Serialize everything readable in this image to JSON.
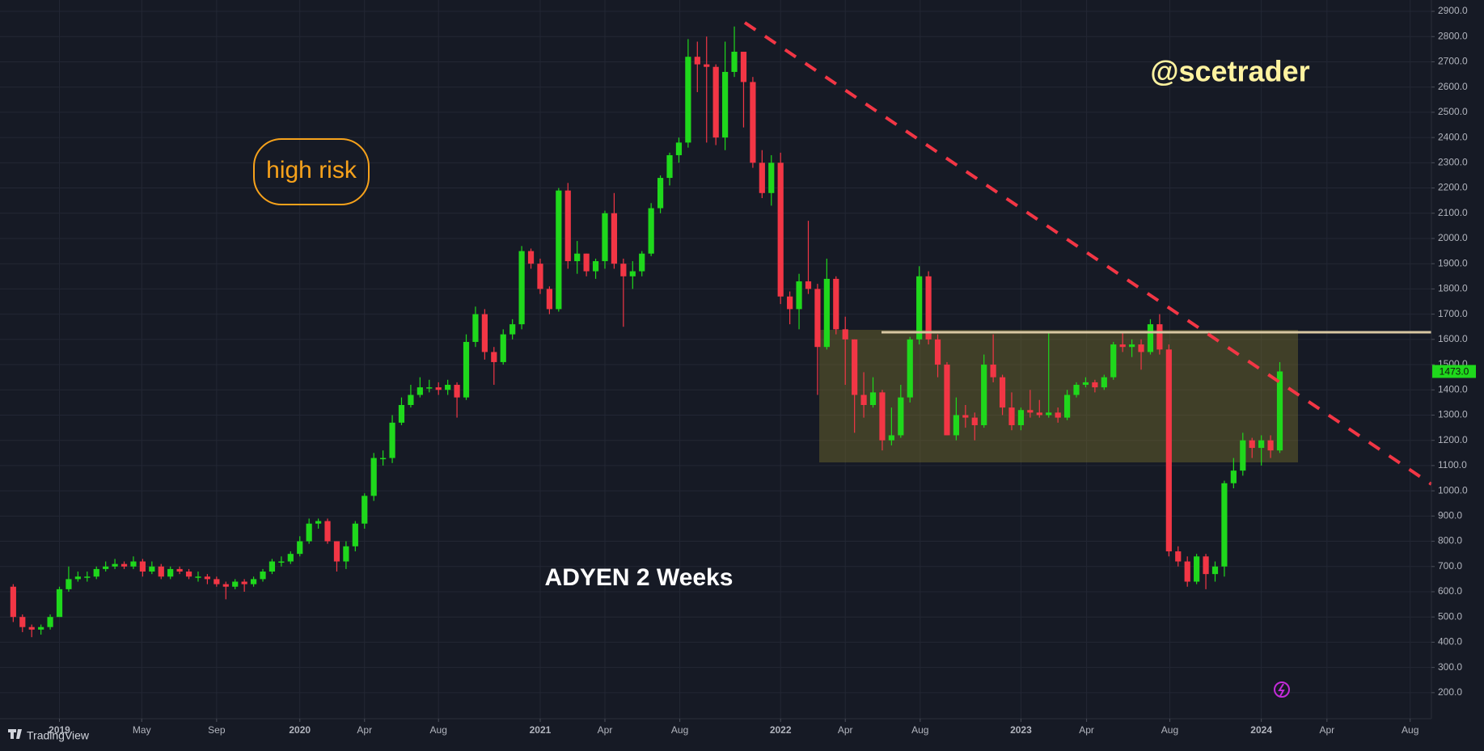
{
  "chart_data": {
    "type": "candlestick",
    "title": "ADYEN 2 Weeks",
    "annotations": {
      "risk": "high risk",
      "author": "@scetrader",
      "brand": "TradingView"
    },
    "last_price_label": "1473.0",
    "up_color": "#1fd81c",
    "down_color": "#f23645",
    "grid": true,
    "xlim": [
      -1.43,
      153.4
    ],
    "ylim": [
      97,
      2945
    ],
    "xticks": [
      {
        "value": 5,
        "label": "2019"
      },
      {
        "value": 13.9,
        "label": "May"
      },
      {
        "value": 22,
        "label": "Sep"
      },
      {
        "value": 31,
        "label": "2020"
      },
      {
        "value": 38,
        "label": "Apr"
      },
      {
        "value": 46,
        "label": "Aug"
      },
      {
        "value": 57,
        "label": "2021"
      },
      {
        "value": 64,
        "label": "Apr"
      },
      {
        "value": 72.1,
        "label": "Aug"
      },
      {
        "value": 83,
        "label": "2022"
      },
      {
        "value": 90,
        "label": "Apr"
      },
      {
        "value": 98.1,
        "label": "Aug"
      },
      {
        "value": 109,
        "label": "2023"
      },
      {
        "value": 116.1,
        "label": "Apr"
      },
      {
        "value": 125.1,
        "label": "Aug"
      },
      {
        "value": 135,
        "label": "2024"
      },
      {
        "value": 142.1,
        "label": "Apr"
      },
      {
        "value": 151.1,
        "label": "Aug"
      }
    ],
    "yticks": [
      {
        "value": 200,
        "label": "200.0"
      },
      {
        "value": 300,
        "label": "300.0"
      },
      {
        "value": 400,
        "label": "400.0"
      },
      {
        "value": 500,
        "label": "500.0"
      },
      {
        "value": 600,
        "label": "600.0"
      },
      {
        "value": 700,
        "label": "700.0"
      },
      {
        "value": 800,
        "label": "800.0"
      },
      {
        "value": 900,
        "label": "900.0"
      },
      {
        "value": 1000,
        "label": "1000.0"
      },
      {
        "value": 1100,
        "label": "1100.0"
      },
      {
        "value": 1200,
        "label": "1200.0"
      },
      {
        "value": 1300,
        "label": "1300.0"
      },
      {
        "value": 1400,
        "label": "1400.0"
      },
      {
        "value": 1500,
        "label": "1500.0"
      },
      {
        "value": 1600,
        "label": "1600.0"
      },
      {
        "value": 1700,
        "label": "1700.0"
      },
      {
        "value": 1800,
        "label": "1800.0"
      },
      {
        "value": 1900,
        "label": "1900.0"
      },
      {
        "value": 2000,
        "label": "2000.0"
      },
      {
        "value": 2100,
        "label": "2100.0"
      },
      {
        "value": 2200,
        "label": "2200.0"
      },
      {
        "value": 2300,
        "label": "2300.0"
      },
      {
        "value": 2400,
        "label": "2400.0"
      },
      {
        "value": 2500,
        "label": "2500.0"
      },
      {
        "value": 2600,
        "label": "2600.0"
      },
      {
        "value": 2700,
        "label": "2700.0"
      },
      {
        "value": 2800,
        "label": "2800.0"
      },
      {
        "value": 2900,
        "label": "2900.0"
      }
    ],
    "open": [
      620,
      500,
      460,
      450,
      460,
      500,
      610,
      650,
      660,
      660,
      690,
      700,
      710,
      700,
      720,
      680,
      700,
      660,
      690,
      680,
      660,
      660,
      650,
      630,
      620,
      640,
      630,
      650,
      680,
      720,
      720,
      750,
      800,
      870,
      880,
      800,
      720,
      780,
      870,
      980,
      1130,
      1130,
      1270,
      1340,
      1380,
      1410,
      1410,
      1400,
      1420,
      1370,
      1590,
      1700,
      1550,
      1510,
      1620,
      1660,
      1950,
      1900,
      1800,
      1720,
      2190,
      1910,
      1940,
      1870,
      1910,
      2100,
      1900,
      1850,
      1870,
      1940,
      2120,
      2240,
      2330,
      2380,
      2720,
      2690,
      2680,
      2400,
      2660,
      2740,
      2620,
      2300,
      2180,
      2300,
      1770,
      1720,
      1830,
      1800,
      1570,
      1840,
      1640,
      1600,
      1380,
      1340,
      1390,
      1200,
      1220,
      1370,
      1600,
      1850,
      1600,
      1500,
      1220,
      1300,
      1290,
      1260,
      1500,
      1450,
      1330,
      1260,
      1320,
      1310,
      1300,
      1310,
      1290,
      1380,
      1420,
      1430,
      1410,
      1450,
      1580,
      1570,
      1580,
      1550,
      1660,
      1560,
      760,
      720,
      640,
      740,
      670,
      700,
      1030,
      1080,
      1200,
      1170,
      1200,
      1160
    ],
    "high": [
      630,
      510,
      470,
      470,
      510,
      620,
      700,
      680,
      680,
      700,
      720,
      730,
      720,
      740,
      730,
      720,
      710,
      700,
      700,
      690,
      680,
      670,
      660,
      640,
      650,
      650,
      660,
      690,
      730,
      740,
      760,
      820,
      890,
      890,
      890,
      800,
      800,
      880,
      990,
      1150,
      1160,
      1300,
      1370,
      1420,
      1450,
      1440,
      1430,
      1440,
      1430,
      1620,
      1730,
      1720,
      1570,
      1640,
      1680,
      1970,
      1960,
      1920,
      1810,
      2200,
      2220,
      1990,
      1940,
      1920,
      2110,
      2180,
      1920,
      1910,
      1950,
      2140,
      2250,
      2340,
      2400,
      2790,
      2780,
      2800,
      2690,
      2780,
      2840,
      2740,
      2640,
      2350,
      2330,
      2340,
      1790,
      1860,
      2070,
      1820,
      1920,
      1850,
      1690,
      1600,
      1470,
      1450,
      1400,
      1330,
      1420,
      1610,
      1890,
      1870,
      1620,
      1510,
      1370,
      1340,
      1310,
      1540,
      1620,
      1460,
      1390,
      1330,
      1400,
      1360,
      1630,
      1330,
      1400,
      1430,
      1450,
      1440,
      1460,
      1590,
      1630,
      1600,
      1600,
      1680,
      1700,
      1580,
      780,
      740,
      750,
      750,
      720,
      1040,
      1130,
      1230,
      1210,
      1220,
      1220,
      1510
    ],
    "low": [
      480,
      440,
      420,
      430,
      450,
      500,
      600,
      640,
      640,
      650,
      680,
      690,
      690,
      690,
      660,
      670,
      650,
      650,
      670,
      650,
      640,
      630,
      620,
      570,
      610,
      600,
      620,
      640,
      670,
      700,
      710,
      740,
      790,
      850,
      790,
      680,
      690,
      760,
      850,
      960,
      1100,
      1110,
      1260,
      1330,
      1370,
      1390,
      1380,
      1380,
      1290,
      1360,
      1570,
      1520,
      1420,
      1500,
      1600,
      1640,
      1880,
      1780,
      1700,
      1710,
      1880,
      1860,
      1850,
      1840,
      1880,
      1880,
      1650,
      1800,
      1850,
      1930,
      2100,
      2210,
      2300,
      2360,
      2580,
      2380,
      2370,
      2350,
      2640,
      2440,
      2280,
      2160,
      2130,
      1740,
      1660,
      1640,
      1780,
      1380,
      1560,
      1620,
      1420,
      1230,
      1290,
      1330,
      1160,
      1180,
      1210,
      1350,
      1580,
      1580,
      1450,
      1220,
      1200,
      1250,
      1200,
      1250,
      1430,
      1300,
      1240,
      1240,
      1290,
      1290,
      1290,
      1270,
      1280,
      1370,
      1410,
      1390,
      1400,
      1440,
      1550,
      1530,
      1480,
      1540,
      1540,
      740,
      700,
      620,
      630,
      610,
      640,
      660,
      1010,
      1060,
      1130,
      1100,
      1130,
      1150
    ],
    "close": [
      500,
      460,
      450,
      460,
      500,
      610,
      650,
      660,
      660,
      690,
      700,
      710,
      700,
      720,
      680,
      700,
      660,
      690,
      680,
      660,
      660,
      650,
      630,
      620,
      640,
      630,
      650,
      680,
      720,
      720,
      750,
      800,
      870,
      880,
      800,
      720,
      780,
      870,
      980,
      1130,
      1130,
      1270,
      1340,
      1380,
      1410,
      1410,
      1400,
      1420,
      1370,
      1590,
      1700,
      1550,
      1510,
      1620,
      1660,
      1950,
      1900,
      1800,
      1720,
      2190,
      1910,
      1940,
      1870,
      1910,
      2100,
      1900,
      1850,
      1870,
      1940,
      2120,
      2240,
      2330,
      2380,
      2720,
      2690,
      2680,
      2400,
      2660,
      2740,
      2620,
      2300,
      2180,
      2300,
      1770,
      1720,
      1830,
      1800,
      1570,
      1840,
      1640,
      1600,
      1380,
      1340,
      1390,
      1200,
      1220,
      1370,
      1600,
      1850,
      1600,
      1500,
      1220,
      1300,
      1290,
      1260,
      1500,
      1450,
      1330,
      1260,
      1320,
      1310,
      1300,
      1310,
      1290,
      1380,
      1420,
      1430,
      1410,
      1450,
      1580,
      1570,
      1580,
      1550,
      1660,
      1560,
      760,
      720,
      640,
      740,
      670,
      700,
      1030,
      1080,
      1200,
      1170,
      1200,
      1160,
      1473
    ]
  }
}
